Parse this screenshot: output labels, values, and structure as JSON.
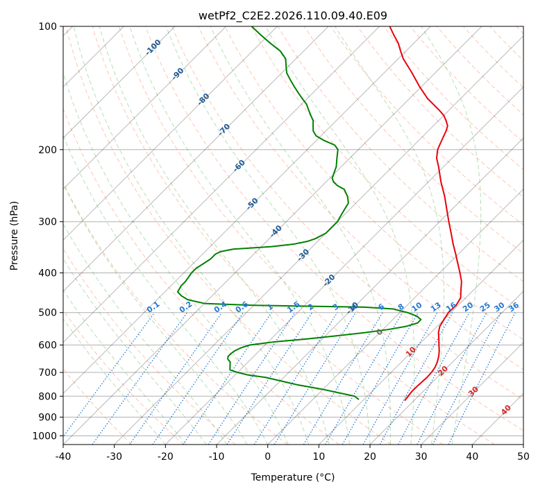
{
  "chart_data": {
    "type": "line",
    "title": "wetPf2_C2E2.2026.110.09.40.E09",
    "xlabel": "Temperature (°C)",
    "ylabel": "Pressure (hPa)",
    "xlim": [
      -40,
      50
    ],
    "ylim": [
      1050,
      100
    ],
    "x_ticks": [
      "-40",
      "-30",
      "-20",
      "-10",
      "0",
      "10",
      "20",
      "30",
      "40",
      "50"
    ],
    "y_ticks": [
      "100",
      "200",
      "300",
      "400",
      "500",
      "600",
      "700",
      "800",
      "900",
      "1000"
    ],
    "colors": {
      "temperature": "#e8000b",
      "dewpoint": "#008000",
      "isotherm": "#000000",
      "dry_adiabat": "#ff7f50",
      "moist_adiabat": "#2ca02c",
      "mixing_ratio": "#1f77d4",
      "axis_label_blue": "#1f5a96",
      "axis_label_red": "#d62728",
      "grid": "#b0b0b0"
    },
    "skewed_isotherm_labels": [
      "-100",
      "-90",
      "-80",
      "-70",
      "-60",
      "-50",
      "-40",
      "-30",
      "-20",
      "-10",
      "0",
      "10",
      "20",
      "30",
      "40"
    ],
    "mixing_ratio_labels": [
      "0.1",
      "0.2",
      "0.4",
      "0.6",
      "1",
      "1.5",
      "2",
      "3",
      "4",
      "6",
      "8",
      "10",
      "13",
      "16",
      "20",
      "25",
      "30",
      "36"
    ],
    "series": [
      {
        "name": "Temperature",
        "color": "#e8000b",
        "points": [
          [
            820,
            18.2
          ],
          [
            800,
            18.0
          ],
          [
            780,
            17.8
          ],
          [
            760,
            17.8
          ],
          [
            740,
            17.9
          ],
          [
            720,
            18.0
          ],
          [
            700,
            17.9
          ],
          [
            680,
            17.6
          ],
          [
            660,
            17.0
          ],
          [
            640,
            16.2
          ],
          [
            620,
            15.2
          ],
          [
            600,
            14.0
          ],
          [
            580,
            12.8
          ],
          [
            560,
            11.5
          ],
          [
            540,
            10.5
          ],
          [
            520,
            10.0
          ],
          [
            500,
            9.5
          ],
          [
            480,
            9.6
          ],
          [
            460,
            9.0
          ],
          [
            440,
            7.5
          ],
          [
            420,
            6.0
          ],
          [
            400,
            4.0
          ],
          [
            380,
            1.8
          ],
          [
            360,
            -0.5
          ],
          [
            340,
            -3.0
          ],
          [
            320,
            -5.5
          ],
          [
            300,
            -8.2
          ],
          [
            280,
            -11.0
          ],
          [
            260,
            -14.0
          ],
          [
            240,
            -17.5
          ],
          [
            220,
            -21.0
          ],
          [
            210,
            -23.0
          ],
          [
            200,
            -24.5
          ],
          [
            195,
            -25.0
          ],
          [
            190,
            -25.5
          ],
          [
            185,
            -26.0
          ],
          [
            180,
            -26.5
          ],
          [
            175,
            -27.2
          ],
          [
            170,
            -28.5
          ],
          [
            165,
            -30.0
          ],
          [
            160,
            -32.0
          ],
          [
            150,
            -36.5
          ],
          [
            140,
            -40.5
          ],
          [
            130,
            -44.5
          ],
          [
            120,
            -49.0
          ],
          [
            115,
            -51.0
          ],
          [
            110,
            -53.0
          ],
          [
            105,
            -55.5
          ],
          [
            100,
            -58.0
          ]
        ]
      },
      {
        "name": "Dewpoint",
        "color": "#008000",
        "points": [
          [
            815,
            9.0
          ],
          [
            800,
            7.5
          ],
          [
            790,
            5.0
          ],
          [
            780,
            2.5
          ],
          [
            770,
            0.0
          ],
          [
            760,
            -3.0
          ],
          [
            750,
            -6.0
          ],
          [
            740,
            -8.5
          ],
          [
            730,
            -11.0
          ],
          [
            720,
            -13.5
          ],
          [
            710,
            -17.5
          ],
          [
            700,
            -20.0
          ],
          [
            690,
            -22.0
          ],
          [
            680,
            -22.5
          ],
          [
            670,
            -23.0
          ],
          [
            660,
            -23.5
          ],
          [
            650,
            -24.5
          ],
          [
            640,
            -25.0
          ],
          [
            630,
            -25.0
          ],
          [
            620,
            -24.8
          ],
          [
            610,
            -24.2
          ],
          [
            600,
            -23.0
          ],
          [
            590,
            -19.0
          ],
          [
            580,
            -13.0
          ],
          [
            570,
            -8.0
          ],
          [
            560,
            -3.0
          ],
          [
            550,
            1.0
          ],
          [
            540,
            4.0
          ],
          [
            530,
            5.5
          ],
          [
            520,
            5.5
          ],
          [
            510,
            4.0
          ],
          [
            500,
            1.5
          ],
          [
            490,
            -2.0
          ],
          [
            485,
            -8.0
          ],
          [
            480,
            -30.0
          ],
          [
            475,
            -40.0
          ],
          [
            465,
            -44.0
          ],
          [
            455,
            -46.0
          ],
          [
            445,
            -47.5
          ],
          [
            430,
            -48.0
          ],
          [
            420,
            -48.0
          ],
          [
            400,
            -48.5
          ],
          [
            390,
            -48.5
          ],
          [
            380,
            -48.0
          ],
          [
            370,
            -47.5
          ],
          [
            360,
            -47.5
          ],
          [
            355,
            -47.0
          ],
          [
            350,
            -45.0
          ],
          [
            345,
            -38.0
          ],
          [
            340,
            -34.0
          ],
          [
            335,
            -32.0
          ],
          [
            330,
            -31.0
          ],
          [
            320,
            -30.0
          ],
          [
            310,
            -30.0
          ],
          [
            300,
            -30.0
          ],
          [
            290,
            -30.5
          ],
          [
            280,
            -31.0
          ],
          [
            270,
            -31.5
          ],
          [
            260,
            -33.0
          ],
          [
            250,
            -35.0
          ],
          [
            245,
            -37.0
          ],
          [
            240,
            -38.5
          ],
          [
            235,
            -39.5
          ],
          [
            230,
            -40.0
          ],
          [
            220,
            -41.0
          ],
          [
            210,
            -42.5
          ],
          [
            200,
            -44.0
          ],
          [
            195,
            -45.5
          ],
          [
            190,
            -48.5
          ],
          [
            185,
            -51.0
          ],
          [
            180,
            -52.5
          ],
          [
            175,
            -53.5
          ],
          [
            170,
            -54.5
          ],
          [
            165,
            -56.0
          ],
          [
            160,
            -57.5
          ],
          [
            155,
            -59.0
          ],
          [
            150,
            -61.0
          ],
          [
            145,
            -63.0
          ],
          [
            140,
            -65.0
          ],
          [
            135,
            -67.0
          ],
          [
            130,
            -69.0
          ],
          [
            125,
            -70.5
          ],
          [
            120,
            -72.0
          ],
          [
            115,
            -74.5
          ],
          [
            110,
            -78.0
          ],
          [
            105,
            -81.5
          ],
          [
            100,
            -85.0
          ]
        ]
      }
    ]
  }
}
